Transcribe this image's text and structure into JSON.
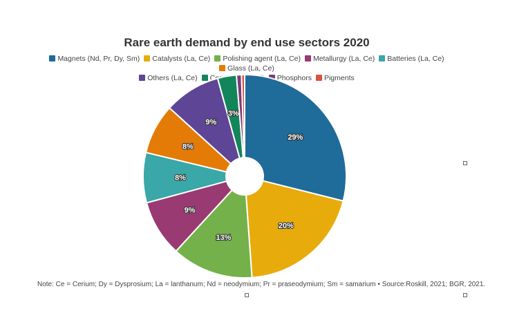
{
  "chart_data": {
    "type": "pie",
    "title": "Rare earth demand by end use sectors 2020",
    "legend_position": "top",
    "donut": true,
    "slices": [
      {
        "name": "Magnets (Nd, Pr, Dy, Sm)",
        "value": 29,
        "label": "29%",
        "color": "#1f6b99"
      },
      {
        "name": "Catalysts (La, Ce)",
        "value": 20,
        "label": "20%",
        "color": "#e8ab0c"
      },
      {
        "name": "Polishing agent (La, Ce)",
        "value": 13,
        "label": "13%",
        "color": "#74b14a"
      },
      {
        "name": "Metallurgy (La, Ce)",
        "value": 9,
        "label": "9%",
        "color": "#993a72"
      },
      {
        "name": "Batteries (La, Ce)",
        "value": 8,
        "label": "8%",
        "color": "#3aa7a8"
      },
      {
        "name": "Glass (La, Ce)",
        "value": 8,
        "label": "8%",
        "color": "#e47b06"
      },
      {
        "name": "Others (La, Ce)",
        "value": 9,
        "label": "9%",
        "color": "#5f4595"
      },
      {
        "name": "Ceramics (Y, Nd)",
        "value": 3,
        "label": "3%",
        "color": "#12865a"
      },
      {
        "name": "Phosphors",
        "value": 0.8,
        "label": "",
        "color": "#7b3b77"
      },
      {
        "name": "Pigments",
        "value": 0.5,
        "label": "",
        "color": "#d9543f"
      }
    ]
  },
  "note": "Note: Ce = Cerium; Dy = Dysprosium; La = lanthanum; Nd = neodymium; Pr = praseodymium; Sm = samarium • Source:Roskill, 2021; BGR, 2021."
}
